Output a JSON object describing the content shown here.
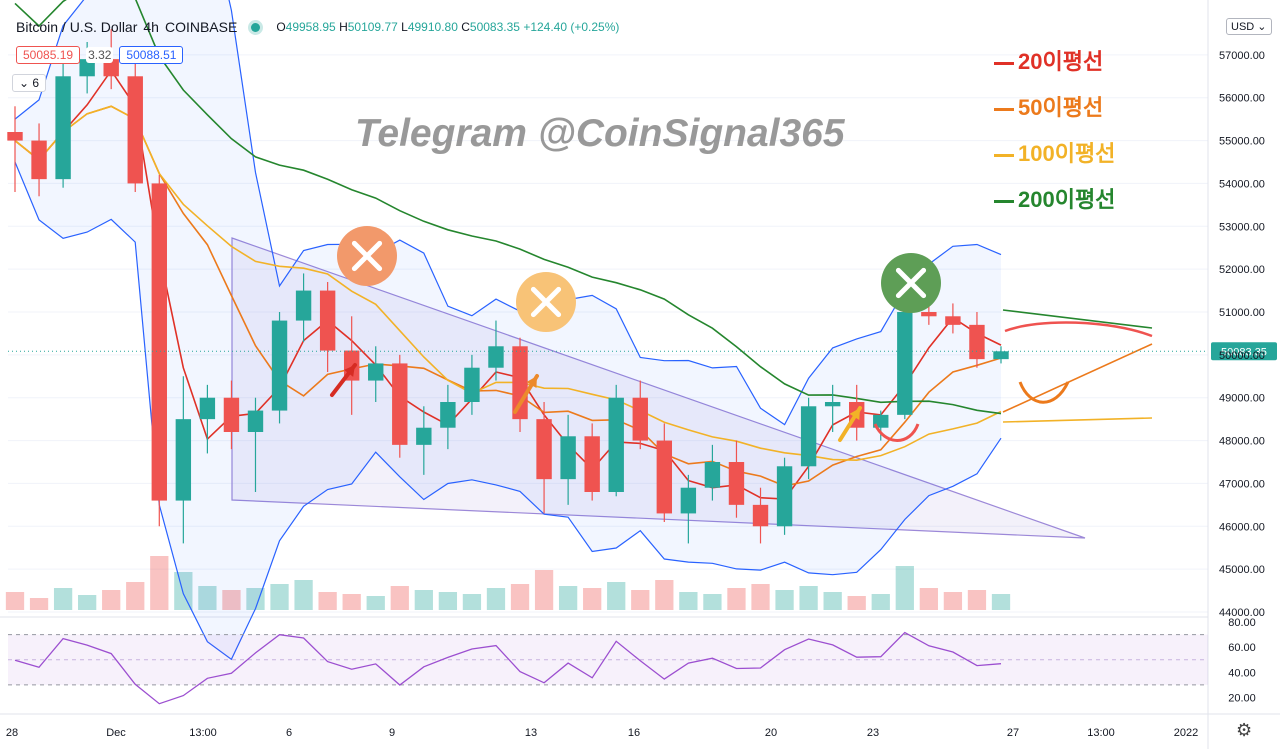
{
  "header": {
    "symbol": "Bitcoin / U.S. Dollar",
    "interval": "4h",
    "exchange": "COINBASE",
    "ohlc": {
      "open": "49958.95",
      "high": "50109.77",
      "low": "49910.80",
      "close": "50083.35",
      "change": "+124.40 (+0.25%)"
    }
  },
  "badges": {
    "bid": "50085.19",
    "spread": "3.32",
    "ask": "50088.51"
  },
  "indicator_count": "6",
  "currency_button": "USD",
  "watermark": "Telegram @CoinSignal365",
  "legend": [
    {
      "label": "20이평선",
      "color": "#e03127"
    },
    {
      "label": "50이평선",
      "color": "#ec7a1c"
    },
    {
      "label": "100이평선",
      "color": "#f2b227"
    },
    {
      "label": "200이평선",
      "color": "#25862e"
    }
  ],
  "colors": {
    "up": "#26a69a",
    "down": "#ef5350",
    "bollinger": "#2962ff",
    "triangle": "#9c88d8",
    "rsi": "#9c4fd0",
    "marker_red_x": "#f2996b",
    "marker_orange_x": "#f8c377",
    "marker_green_x": "#5e9e56"
  },
  "chart_data": {
    "type": "candlestick",
    "price_axis": {
      "ticks": [
        "57000.00",
        "56000.00",
        "55000.00",
        "54000.00",
        "53000.00",
        "52000.00",
        "51000.00",
        "50000.00",
        "49000.00",
        "48000.00",
        "47000.00",
        "46000.00",
        "45000.00",
        "44000.00"
      ],
      "current_price_label": "50083.35",
      "range": [
        44000,
        58000
      ]
    },
    "rsi_axis": {
      "ticks": [
        "80.00",
        "60.00",
        "40.00",
        "20.00"
      ],
      "range": [
        10,
        80
      ],
      "bands": [
        70,
        30
      ]
    },
    "time_axis": {
      "labels": [
        "28",
        "Dec",
        "13:00",
        "6",
        "9",
        "13",
        "16",
        "20",
        "23",
        "27",
        "13:00",
        "2022"
      ]
    },
    "candles": [
      {
        "t": "Dec 3",
        "o": 55200,
        "h": 55800,
        "l": 53800,
        "c": 55000
      },
      {
        "t": "Dec 3",
        "o": 55000,
        "h": 55400,
        "l": 53700,
        "c": 54100
      },
      {
        "t": "Dec 3",
        "o": 54100,
        "h": 56800,
        "l": 53900,
        "c": 56500
      },
      {
        "t": "Dec 3",
        "o": 56500,
        "h": 57300,
        "l": 56100,
        "c": 56900
      },
      {
        "t": "Dec 4",
        "o": 56900,
        "h": 57600,
        "l": 56200,
        "c": 56500
      },
      {
        "t": "Dec 4",
        "o": 56500,
        "h": 56800,
        "l": 53800,
        "c": 54000
      },
      {
        "t": "Dec 4",
        "o": 54000,
        "h": 54200,
        "l": 46000,
        "c": 46600
      },
      {
        "t": "Dec 4",
        "o": 46600,
        "h": 49500,
        "l": 45600,
        "c": 48500
      },
      {
        "t": "Dec 5",
        "o": 48500,
        "h": 49300,
        "l": 47700,
        "c": 49000
      },
      {
        "t": "Dec 5",
        "o": 49000,
        "h": 49400,
        "l": 47800,
        "c": 48200
      },
      {
        "t": "Dec 6",
        "o": 48200,
        "h": 49000,
        "l": 46800,
        "c": 48700
      },
      {
        "t": "Dec 7",
        "o": 48700,
        "h": 51000,
        "l": 48400,
        "c": 50800
      },
      {
        "t": "Dec 7",
        "o": 50800,
        "h": 51900,
        "l": 50300,
        "c": 51500
      },
      {
        "t": "Dec 8",
        "o": 51500,
        "h": 51700,
        "l": 49600,
        "c": 50100
      },
      {
        "t": "Dec 8",
        "o": 50100,
        "h": 50900,
        "l": 48600,
        "c": 49400
      },
      {
        "t": "Dec 9",
        "o": 49400,
        "h": 50200,
        "l": 48900,
        "c": 49800
      },
      {
        "t": "Dec 10",
        "o": 49800,
        "h": 50000,
        "l": 47600,
        "c": 47900
      },
      {
        "t": "Dec 10",
        "o": 47900,
        "h": 48800,
        "l": 47200,
        "c": 48300
      },
      {
        "t": "Dec 11",
        "o": 48300,
        "h": 49300,
        "l": 47800,
        "c": 48900
      },
      {
        "t": "Dec 12",
        "o": 48900,
        "h": 50000,
        "l": 48600,
        "c": 49700
      },
      {
        "t": "Dec 13",
        "o": 49700,
        "h": 50800,
        "l": 49400,
        "c": 50200
      },
      {
        "t": "Dec 13",
        "o": 50200,
        "h": 50400,
        "l": 48200,
        "c": 48500
      },
      {
        "t": "Dec 14",
        "o": 48500,
        "h": 48900,
        "l": 46300,
        "c": 47100
      },
      {
        "t": "Dec 15",
        "o": 47100,
        "h": 48600,
        "l": 46500,
        "c": 48100
      },
      {
        "t": "Dec 15",
        "o": 48100,
        "h": 48400,
        "l": 46600,
        "c": 46800
      },
      {
        "t": "Dec 16",
        "o": 46800,
        "h": 49300,
        "l": 46700,
        "c": 49000
      },
      {
        "t": "Dec 16",
        "o": 49000,
        "h": 49400,
        "l": 47800,
        "c": 48000
      },
      {
        "t": "Dec 17",
        "o": 48000,
        "h": 48400,
        "l": 46100,
        "c": 46300
      },
      {
        "t": "Dec 18",
        "o": 46300,
        "h": 47200,
        "l": 45600,
        "c": 46900
      },
      {
        "t": "Dec 18",
        "o": 46900,
        "h": 47900,
        "l": 46600,
        "c": 47500
      },
      {
        "t": "Dec 19",
        "o": 47500,
        "h": 48000,
        "l": 46200,
        "c": 46500
      },
      {
        "t": "Dec 20",
        "o": 46500,
        "h": 46900,
        "l": 45600,
        "c": 46000
      },
      {
        "t": "Dec 20",
        "o": 46000,
        "h": 47600,
        "l": 45800,
        "c": 47400
      },
      {
        "t": "Dec 21",
        "o": 47400,
        "h": 49000,
        "l": 47100,
        "c": 48800
      },
      {
        "t": "Dec 22",
        "o": 48800,
        "h": 49300,
        "l": 48200,
        "c": 48900
      },
      {
        "t": "Dec 22",
        "o": 48900,
        "h": 49300,
        "l": 48000,
        "c": 48300
      },
      {
        "t": "Dec 23",
        "o": 48300,
        "h": 48700,
        "l": 48000,
        "c": 48600
      },
      {
        "t": "Dec 23",
        "o": 48600,
        "h": 51500,
        "l": 48500,
        "c": 51000
      },
      {
        "t": "Dec 24",
        "o": 51000,
        "h": 51300,
        "l": 50700,
        "c": 50900
      },
      {
        "t": "Dec 25",
        "o": 50900,
        "h": 51200,
        "l": 50500,
        "c": 50700
      },
      {
        "t": "Dec 26",
        "o": 50700,
        "h": 51000,
        "l": 49700,
        "c": 49900
      },
      {
        "t": "Dec 26",
        "o": 49900,
        "h": 50200,
        "l": 49800,
        "c": 50083
      }
    ]
  }
}
